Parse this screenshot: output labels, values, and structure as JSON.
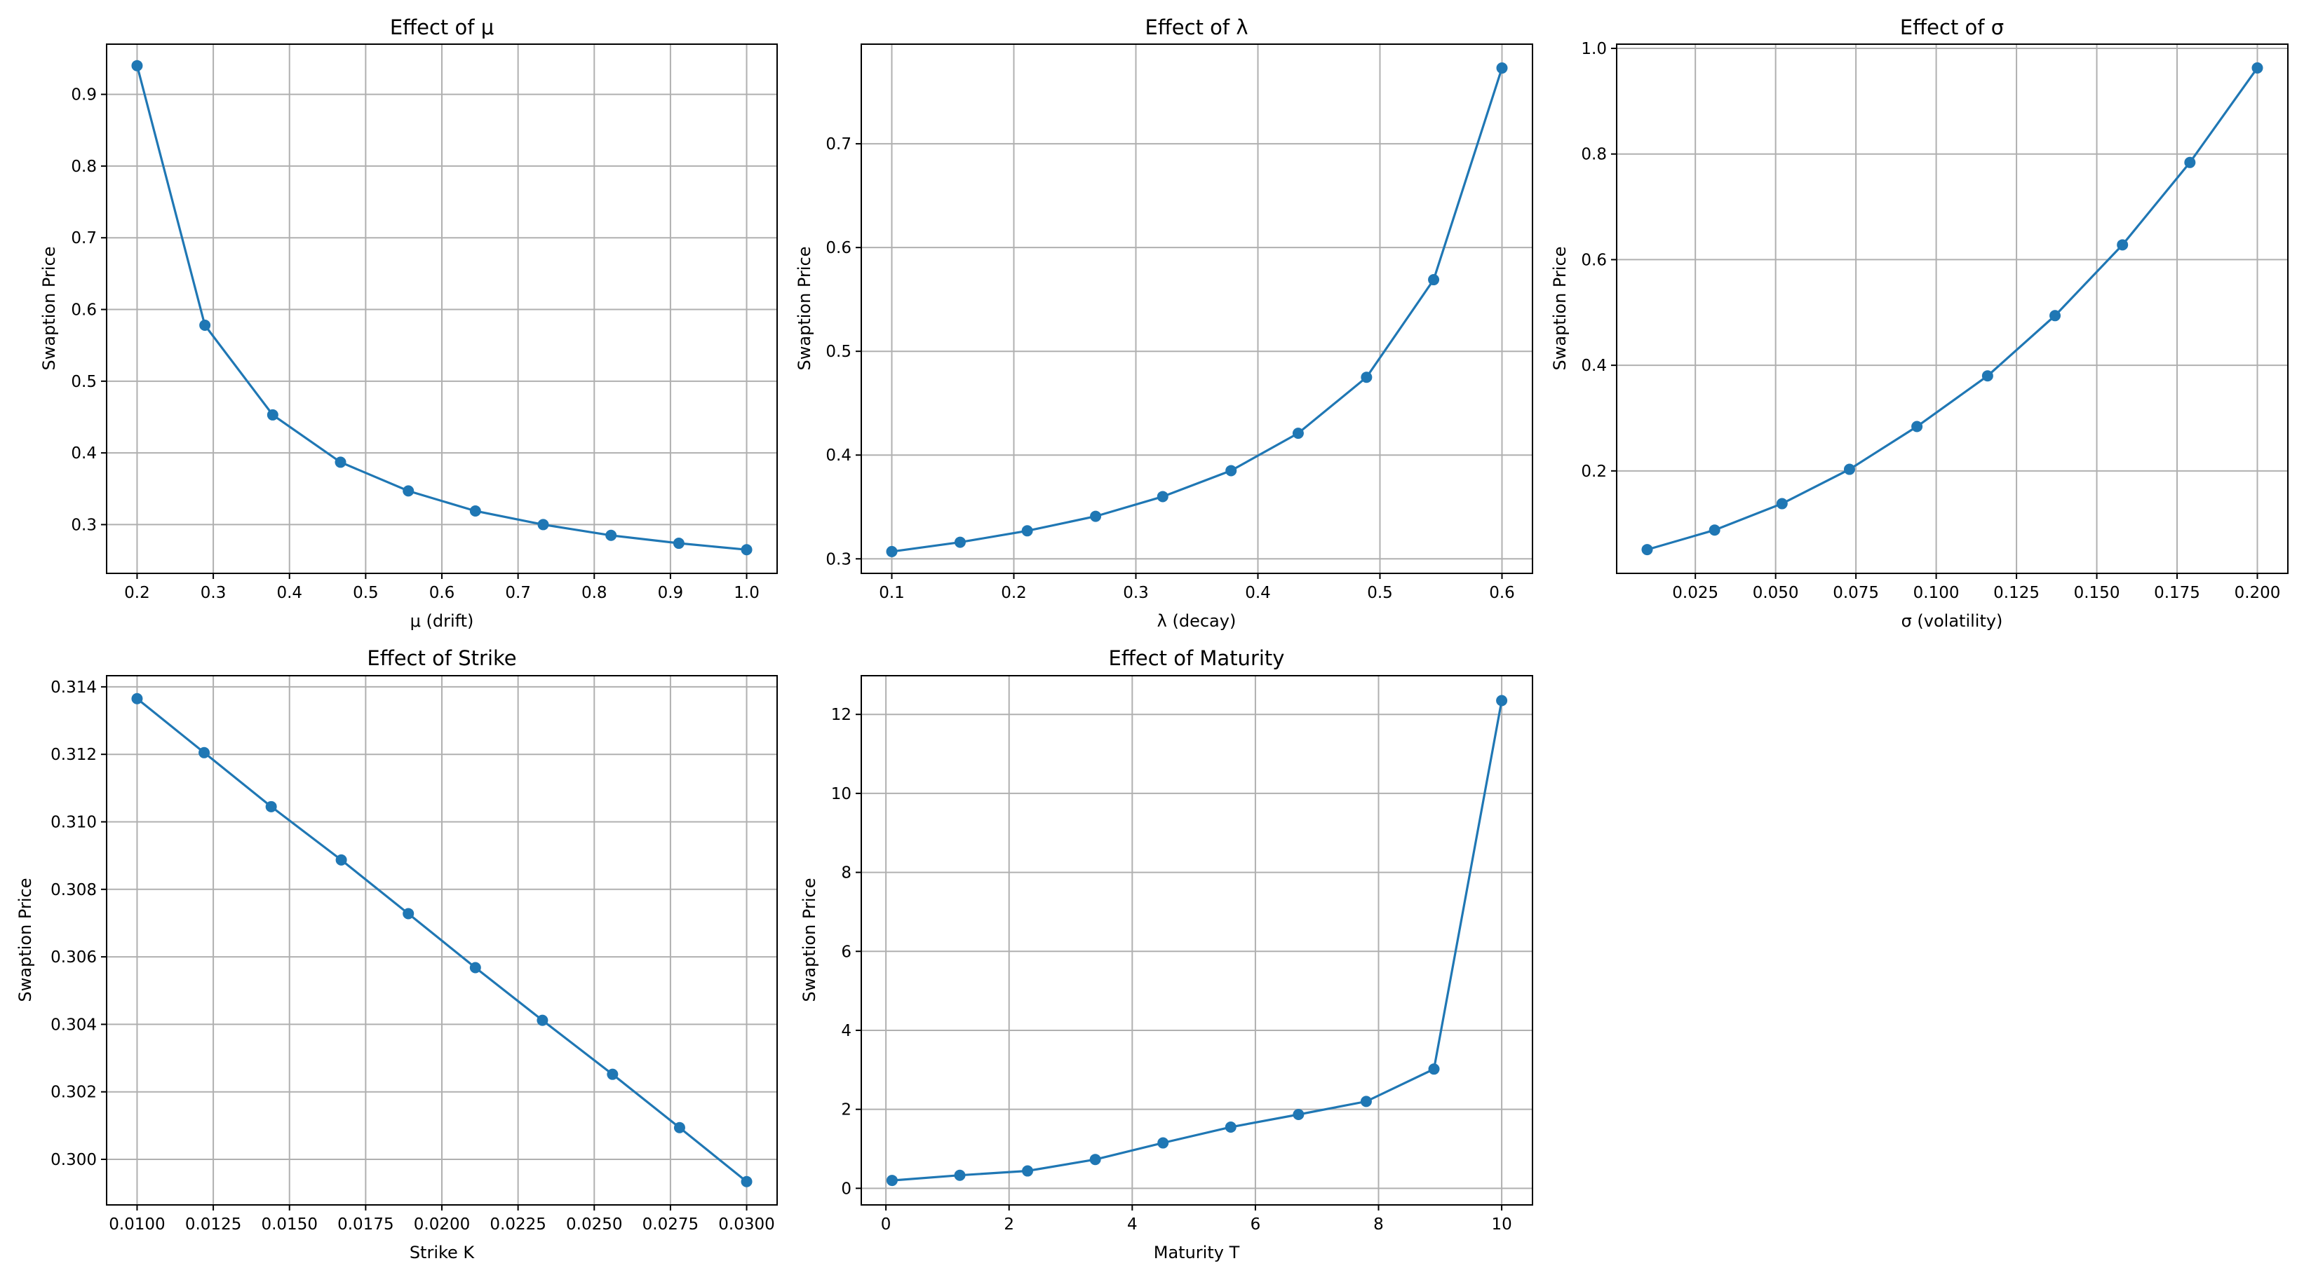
{
  "colors": {
    "series": "#1f77b4",
    "grid": "#b0b0b0",
    "axis": "#000000"
  },
  "chart_data": [
    {
      "type": "line",
      "title": "Effect of μ",
      "xlabel": "μ (drift)",
      "ylabel": "Swaption Price",
      "xlim": [
        0.16,
        1.04
      ],
      "ylim": [
        0.232,
        0.97
      ],
      "xticks": [
        0.2,
        0.3,
        0.4,
        0.5,
        0.6,
        0.7,
        0.8,
        0.9,
        1.0
      ],
      "xtick_labels": [
        "0.2",
        "0.3",
        "0.4",
        "0.5",
        "0.6",
        "0.7",
        "0.8",
        "0.9",
        "1.0"
      ],
      "yticks": [
        0.3,
        0.4,
        0.5,
        0.6,
        0.7,
        0.8,
        0.9
      ],
      "ytick_labels": [
        "0.3",
        "0.4",
        "0.5",
        "0.6",
        "0.7",
        "0.8",
        "0.9"
      ],
      "grid": true,
      "x": [
        0.2,
        0.289,
        0.378,
        0.467,
        0.556,
        0.644,
        0.733,
        0.822,
        0.911,
        1.0
      ],
      "y": [
        0.94,
        0.578,
        0.453,
        0.387,
        0.347,
        0.319,
        0.3,
        0.285,
        0.274,
        0.265
      ]
    },
    {
      "type": "line",
      "title": "Effect of λ",
      "xlabel": "λ (decay)",
      "ylabel": "Swaption Price",
      "xlim": [
        0.075,
        0.625
      ],
      "ylim": [
        0.286,
        0.796
      ],
      "xticks": [
        0.1,
        0.2,
        0.3,
        0.4,
        0.5,
        0.6
      ],
      "xtick_labels": [
        "0.1",
        "0.2",
        "0.3",
        "0.4",
        "0.5",
        "0.6"
      ],
      "yticks": [
        0.3,
        0.4,
        0.5,
        0.6,
        0.7
      ],
      "ytick_labels": [
        "0.3",
        "0.4",
        "0.5",
        "0.6",
        "0.7"
      ],
      "grid": true,
      "x": [
        0.1,
        0.156,
        0.211,
        0.267,
        0.322,
        0.378,
        0.433,
        0.489,
        0.544,
        0.6
      ],
      "y": [
        0.307,
        0.316,
        0.327,
        0.341,
        0.36,
        0.385,
        0.421,
        0.475,
        0.569,
        0.773
      ]
    },
    {
      "type": "line",
      "title": "Effect of σ",
      "xlabel": "σ (volatility)",
      "ylabel": "Swaption Price",
      "xlim": [
        0.0005,
        0.2095
      ],
      "ylim": [
        0.006,
        1.008
      ],
      "xticks": [
        0.025,
        0.05,
        0.075,
        0.1,
        0.125,
        0.15,
        0.175,
        0.2
      ],
      "xtick_labels": [
        "0.025",
        "0.050",
        "0.075",
        "0.100",
        "0.125",
        "0.150",
        "0.175",
        "0.200"
      ],
      "yticks": [
        0.2,
        0.4,
        0.6,
        0.8,
        1.0
      ],
      "ytick_labels": [
        "0.2",
        "0.4",
        "0.6",
        "0.8",
        "1.0"
      ],
      "grid": true,
      "x": [
        0.01,
        0.031,
        0.052,
        0.073,
        0.094,
        0.116,
        0.137,
        0.158,
        0.179,
        0.2
      ],
      "y": [
        0.051,
        0.088,
        0.138,
        0.203,
        0.284,
        0.38,
        0.494,
        0.628,
        0.784,
        0.963
      ]
    },
    {
      "type": "line",
      "title": "Effect of Strike",
      "xlabel": "Strike K",
      "ylabel": "Swaption Price",
      "xlim": [
        0.009,
        0.031
      ],
      "ylim": [
        0.29865,
        0.31433
      ],
      "xticks": [
        0.01,
        0.0125,
        0.015,
        0.0175,
        0.02,
        0.0225,
        0.025,
        0.0275,
        0.03
      ],
      "xtick_labels": [
        "0.0100",
        "0.0125",
        "0.0150",
        "0.0175",
        "0.0200",
        "0.0225",
        "0.0250",
        "0.0275",
        "0.0300"
      ],
      "yticks": [
        0.3,
        0.302,
        0.304,
        0.306,
        0.308,
        0.31,
        0.312,
        0.314
      ],
      "ytick_labels": [
        "0.300",
        "0.302",
        "0.304",
        "0.306",
        "0.308",
        "0.310",
        "0.312",
        "0.314"
      ],
      "grid": true,
      "x": [
        0.01,
        0.0122,
        0.0144,
        0.0167,
        0.0189,
        0.0211,
        0.0233,
        0.0256,
        0.0278,
        0.03
      ],
      "y": [
        0.31365,
        0.31205,
        0.31045,
        0.30887,
        0.30728,
        0.30568,
        0.30412,
        0.30252,
        0.30094,
        0.29934
      ]
    },
    {
      "type": "line",
      "title": "Effect of Maturity",
      "xlabel": "Maturity T",
      "ylabel": "Swaption Price",
      "xlim": [
        -0.4,
        10.5
      ],
      "ylim": [
        -0.42,
        12.98
      ],
      "xticks": [
        0,
        2,
        4,
        6,
        8,
        10
      ],
      "xtick_labels": [
        "0",
        "2",
        "4",
        "6",
        "8",
        "10"
      ],
      "yticks": [
        0,
        2,
        4,
        6,
        8,
        10,
        12
      ],
      "ytick_labels": [
        "0",
        "2",
        "4",
        "6",
        "8",
        "10",
        "12"
      ],
      "grid": true,
      "x": [
        0.1,
        1.2,
        2.3,
        3.4,
        4.5,
        5.6,
        6.7,
        7.8,
        8.9,
        10.0
      ],
      "y": [
        0.2,
        0.33,
        0.44,
        0.73,
        1.15,
        1.55,
        1.87,
        2.2,
        3.02,
        12.35
      ]
    }
  ]
}
